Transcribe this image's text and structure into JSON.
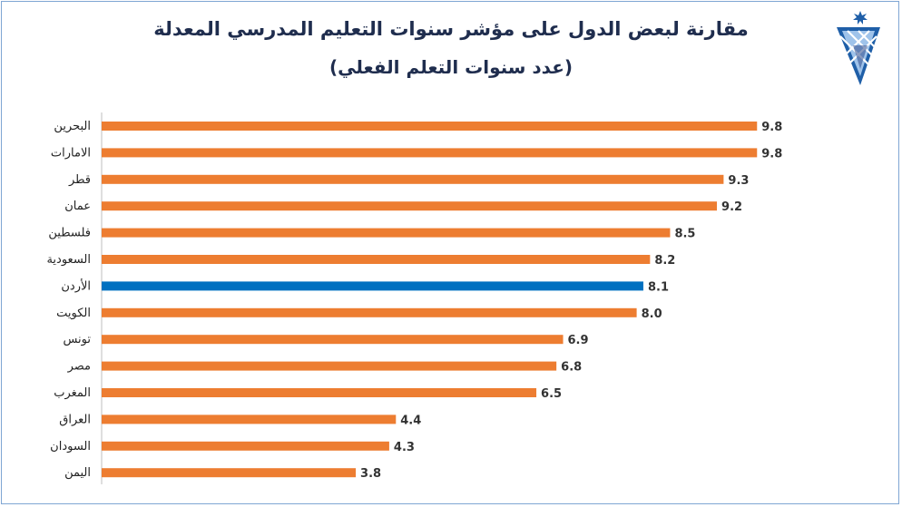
{
  "title": "مقارنة لبعض الدول على مؤشر سنوات التعليم المدرسي المعدلة",
  "subtitle": "(عدد سنوات التعلم الفعلي)",
  "colors": {
    "default_bar": "#ed7d31",
    "highlight_bar": "#0070c0",
    "title": "#1f2d4e",
    "border": "#7fa6d3"
  },
  "logo": {
    "icon": "jordan-star-emblem-icon"
  },
  "chart_data": {
    "type": "bar",
    "orientation": "horizontal",
    "title": "مقارنة لبعض الدول على مؤشر سنوات التعليم المدرسي المعدلة",
    "subtitle": "(عدد سنوات التعلم الفعلي)",
    "categories": [
      "البحرين",
      "الامارات",
      "قطر",
      "عمان",
      "فلسطين",
      "السعودية",
      "الأردن",
      "الكويت",
      "تونس",
      "مصر",
      "المغرب",
      "العراق",
      "السودان",
      "اليمن"
    ],
    "values": [
      9.8,
      9.8,
      9.3,
      9.2,
      8.5,
      8.2,
      8.1,
      8.0,
      6.9,
      6.8,
      6.5,
      4.4,
      4.3,
      3.8
    ],
    "value_labels": [
      "9.8",
      "9.8",
      "9.3",
      "9.2",
      "8.5",
      "8.2",
      "8.1",
      "8.0",
      "6.9",
      "6.8",
      "6.5",
      "4.4",
      "4.3",
      "3.8"
    ],
    "highlight": "الأردن",
    "xlim": [
      0,
      10
    ],
    "grid": false,
    "legend": "none"
  }
}
